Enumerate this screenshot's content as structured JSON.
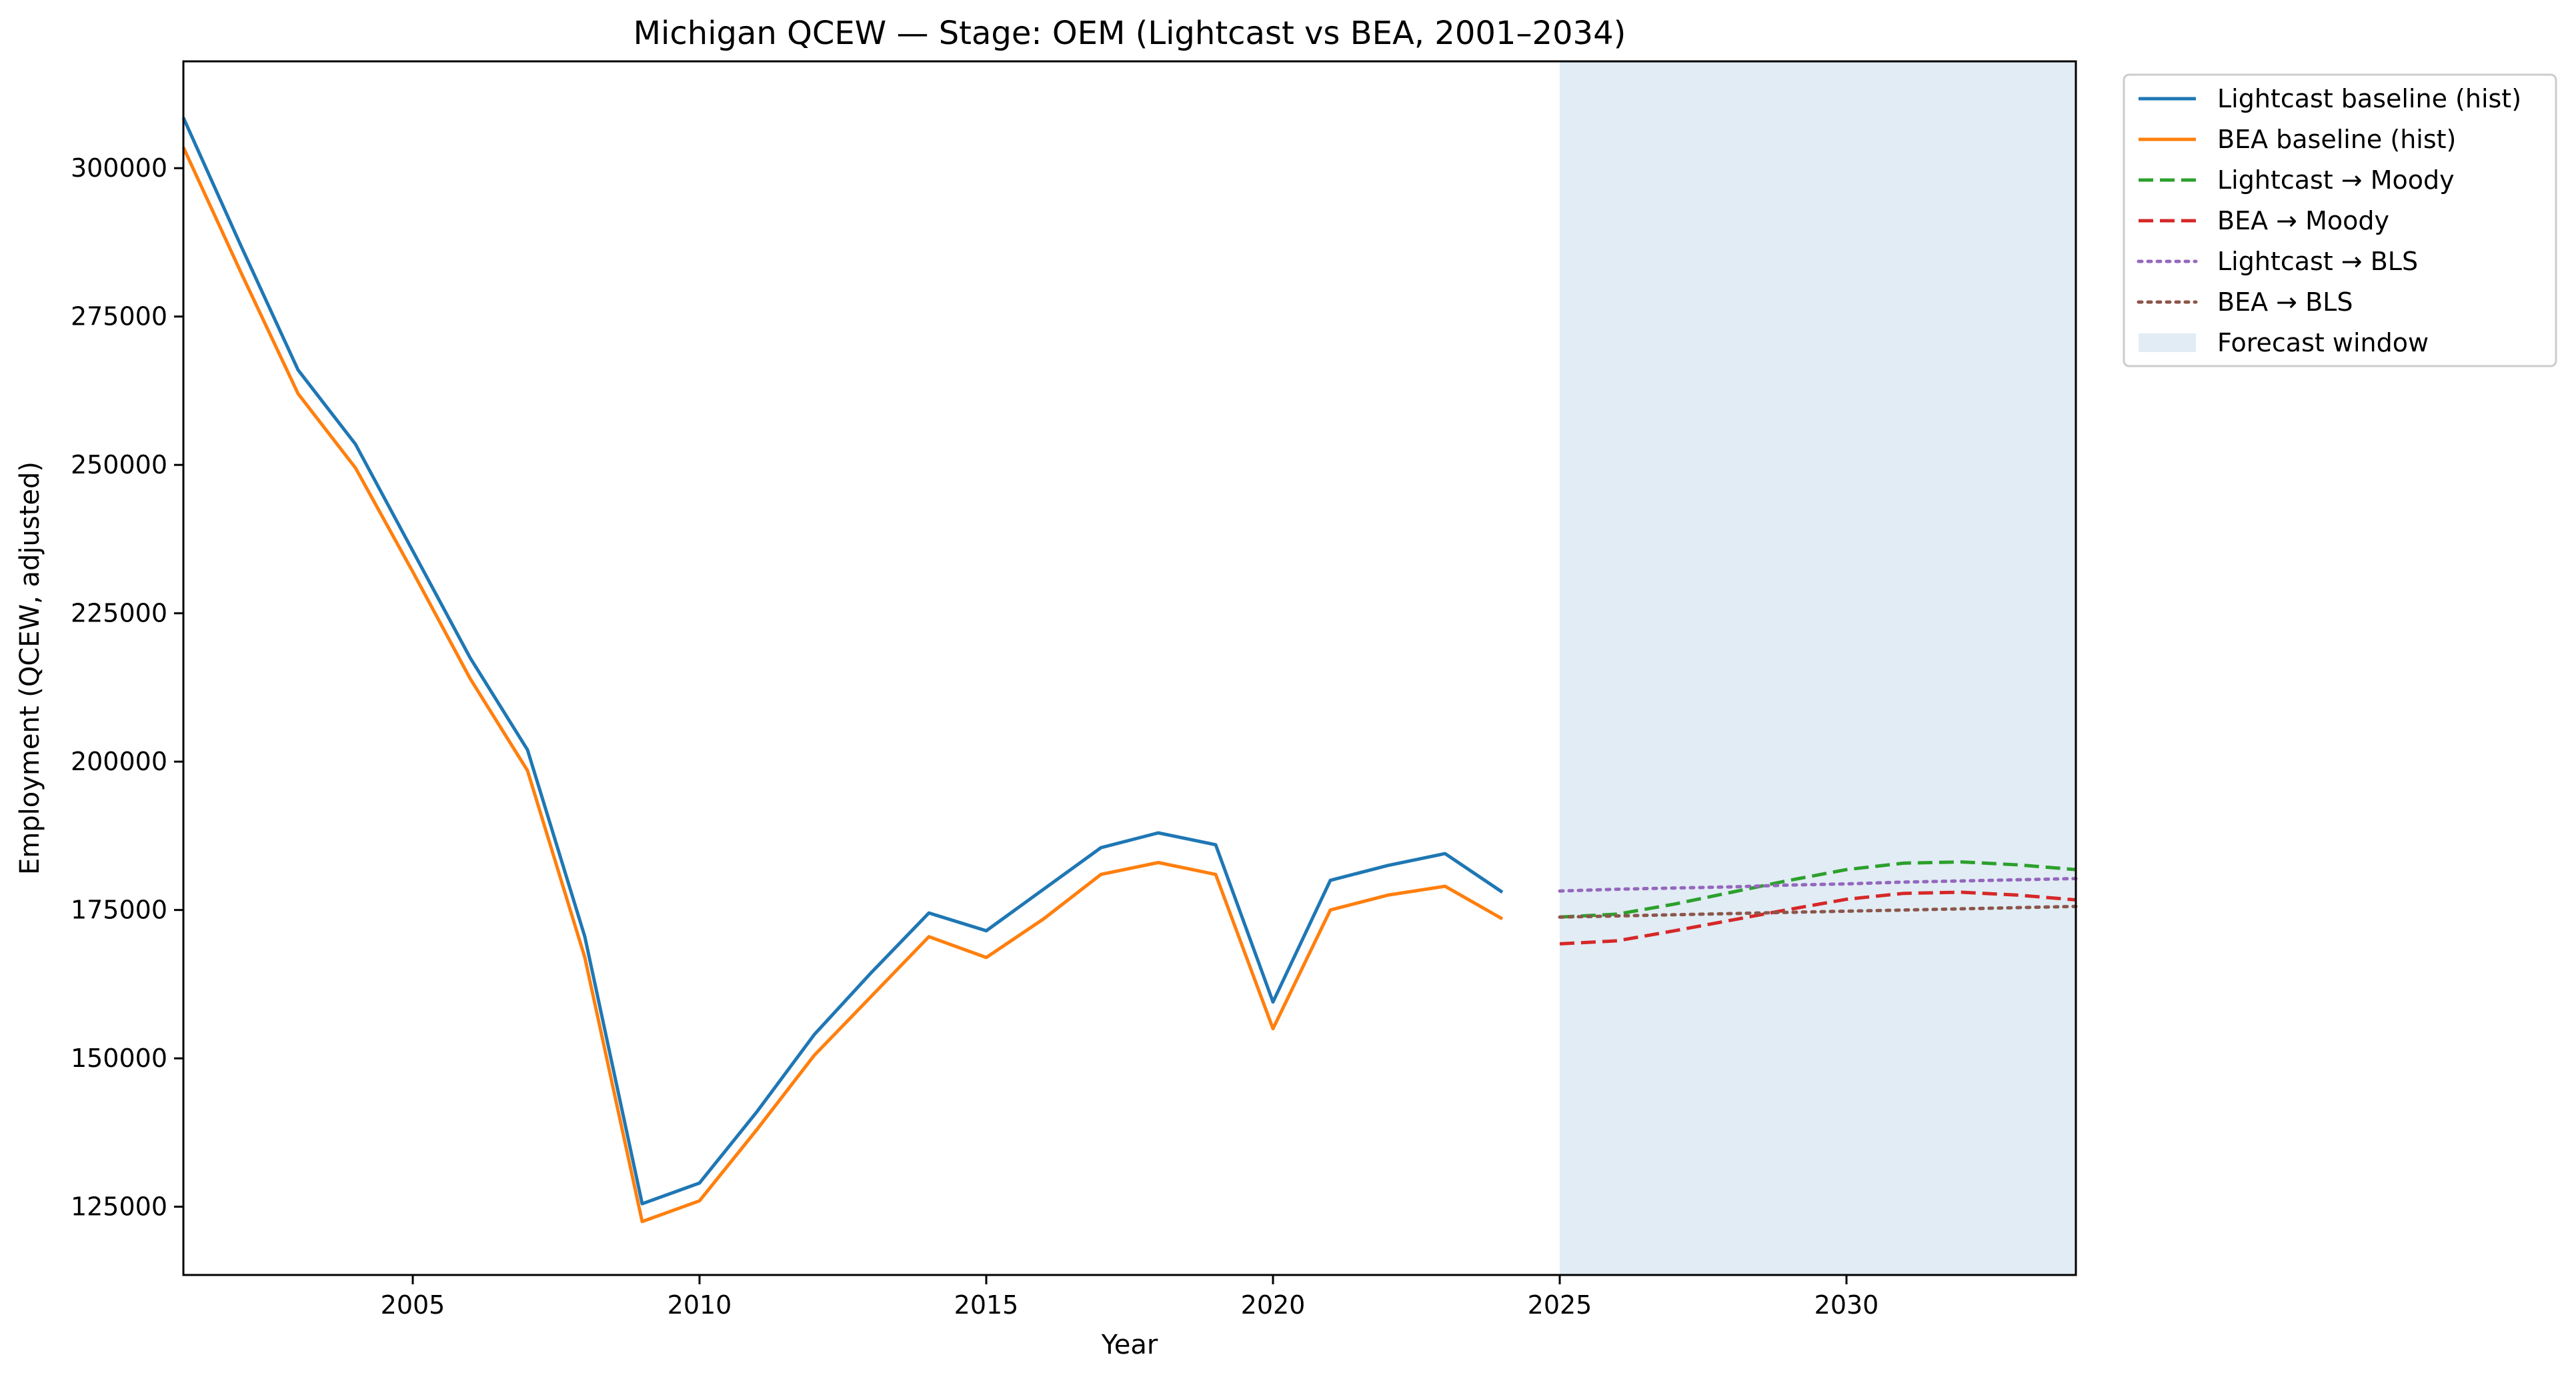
{
  "chart_data": {
    "type": "line",
    "title": "Michigan QCEW — Stage: OEM (Lightcast vs BEA, 2001–2034)",
    "xlabel": "Year",
    "ylabel": "Employment (QCEW, adjusted)",
    "xlim": [
      2001,
      2034
    ],
    "ylim": [
      113500,
      318000
    ],
    "x_ticks": [
      2005,
      2010,
      2015,
      2020,
      2025,
      2030
    ],
    "y_ticks": [
      125000,
      150000,
      175000,
      200000,
      225000,
      250000,
      275000,
      300000
    ],
    "grid": false,
    "legend_position": "outside-top-right",
    "forecast_window": {
      "label": "Forecast window",
      "x_start": 2025,
      "x_end": 2034,
      "color": "#e1ecf4"
    },
    "series": [
      {
        "name": "Lightcast baseline (hist)",
        "color": "#1f77b4",
        "style": "solid",
        "x": [
          2001,
          2002,
          2003,
          2004,
          2005,
          2006,
          2007,
          2008,
          2009,
          2010,
          2011,
          2012,
          2013,
          2014,
          2015,
          2016,
          2017,
          2018,
          2019,
          2020,
          2021,
          2022,
          2023,
          2024
        ],
        "y": [
          308500,
          287000,
          266000,
          253500,
          235500,
          217500,
          202000,
          170500,
          125500,
          129000,
          141000,
          154000,
          164500,
          174500,
          171500,
          178500,
          185500,
          188000,
          186000,
          159500,
          180000,
          182500,
          184500,
          178000
        ]
      },
      {
        "name": "BEA baseline (hist)",
        "color": "#ff7f0e",
        "style": "solid",
        "x": [
          2001,
          2002,
          2003,
          2004,
          2005,
          2006,
          2007,
          2008,
          2009,
          2010,
          2011,
          2012,
          2013,
          2014,
          2015,
          2016,
          2017,
          2018,
          2019,
          2020,
          2021,
          2022,
          2023,
          2024
        ],
        "y": [
          303500,
          282500,
          262000,
          249500,
          232000,
          214000,
          198500,
          167000,
          122500,
          126000,
          138000,
          150500,
          160500,
          170500,
          167000,
          173500,
          181000,
          183000,
          181000,
          155000,
          175000,
          177500,
          179000,
          173500
        ]
      },
      {
        "name": "Lightcast → Moody",
        "color": "#2ca02c",
        "style": "dashed",
        "x": [
          2025,
          2026,
          2027,
          2028,
          2029,
          2030,
          2031,
          2032,
          2033,
          2034
        ],
        "y": [
          173800,
          174300,
          176000,
          178000,
          180000,
          181800,
          182900,
          183100,
          182600,
          181800
        ]
      },
      {
        "name": "BEA → Moody",
        "color": "#d62728",
        "style": "dashed",
        "x": [
          2025,
          2026,
          2027,
          2028,
          2029,
          2030,
          2031,
          2032,
          2033,
          2034
        ],
        "y": [
          169300,
          169800,
          171500,
          173300,
          175100,
          176800,
          177800,
          178000,
          177500,
          176700
        ]
      },
      {
        "name": "Lightcast → BLS",
        "color": "#9467bd",
        "style": "dotted",
        "x": [
          2025,
          2026,
          2027,
          2028,
          2029,
          2030,
          2031,
          2032,
          2033,
          2034
        ],
        "y": [
          178200,
          178500,
          178700,
          178900,
          179200,
          179400,
          179700,
          179900,
          180100,
          180300
        ]
      },
      {
        "name": "BEA → BLS",
        "color": "#8c564b",
        "style": "dotted",
        "x": [
          2025,
          2026,
          2027,
          2028,
          2029,
          2030,
          2031,
          2032,
          2033,
          2034
        ],
        "y": [
          173800,
          174000,
          174200,
          174400,
          174600,
          174800,
          175000,
          175200,
          175400,
          175600
        ]
      }
    ]
  }
}
